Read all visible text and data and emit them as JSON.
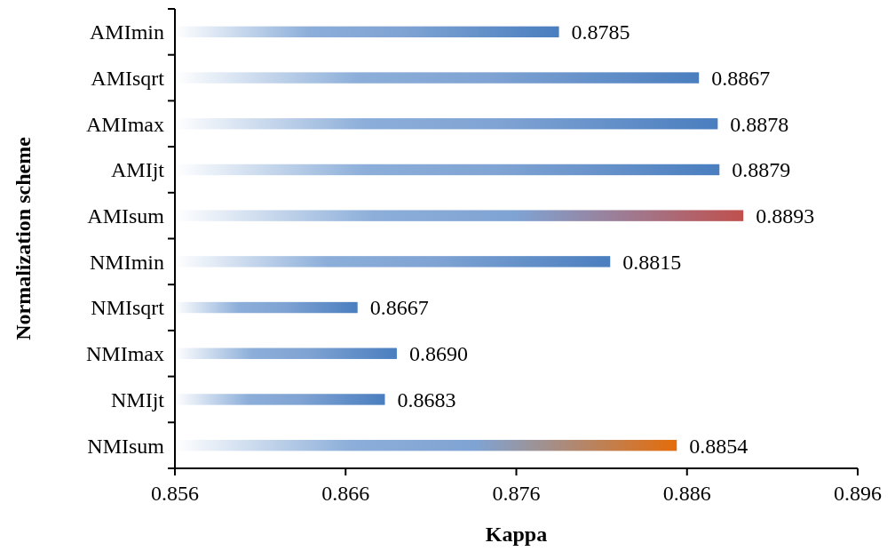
{
  "chart_data": {
    "type": "bar",
    "orientation": "horizontal",
    "xlabel": "Kappa",
    "ylabel": "Normalization scheme",
    "categories": [
      "AMImin",
      "AMIsqrt",
      "AMImax",
      "AMIjt",
      "AMIsum",
      "NMImin",
      "NMIsqrt",
      "NMImax",
      "NMIjt",
      "NMIsum"
    ],
    "values": [
      0.8785,
      0.8867,
      0.8878,
      0.8879,
      0.8893,
      0.8815,
      0.8667,
      0.869,
      0.8683,
      0.8854
    ],
    "value_labels": [
      "0.8785",
      "0.8867",
      "0.8878",
      "0.8879",
      "0.8893",
      "0.8815",
      "0.8667",
      "0.8690",
      "0.8683",
      "0.8854"
    ],
    "colors": [
      "#4a7ebf",
      "#4a7ebf",
      "#4a7ebf",
      "#4a7ebf",
      "#c0504d",
      "#4a7ebf",
      "#4a7ebf",
      "#4a7ebf",
      "#4a7ebf",
      "#e46c0a"
    ],
    "xlim": [
      0.856,
      0.896
    ],
    "xticks": [
      {
        "value": 0.856,
        "label": "0.856"
      },
      {
        "value": 0.866,
        "label": "0.866"
      },
      {
        "value": 0.876,
        "label": "0.876"
      },
      {
        "value": 0.886,
        "label": "0.886"
      },
      {
        "value": 0.896,
        "label": "0.896"
      }
    ]
  }
}
